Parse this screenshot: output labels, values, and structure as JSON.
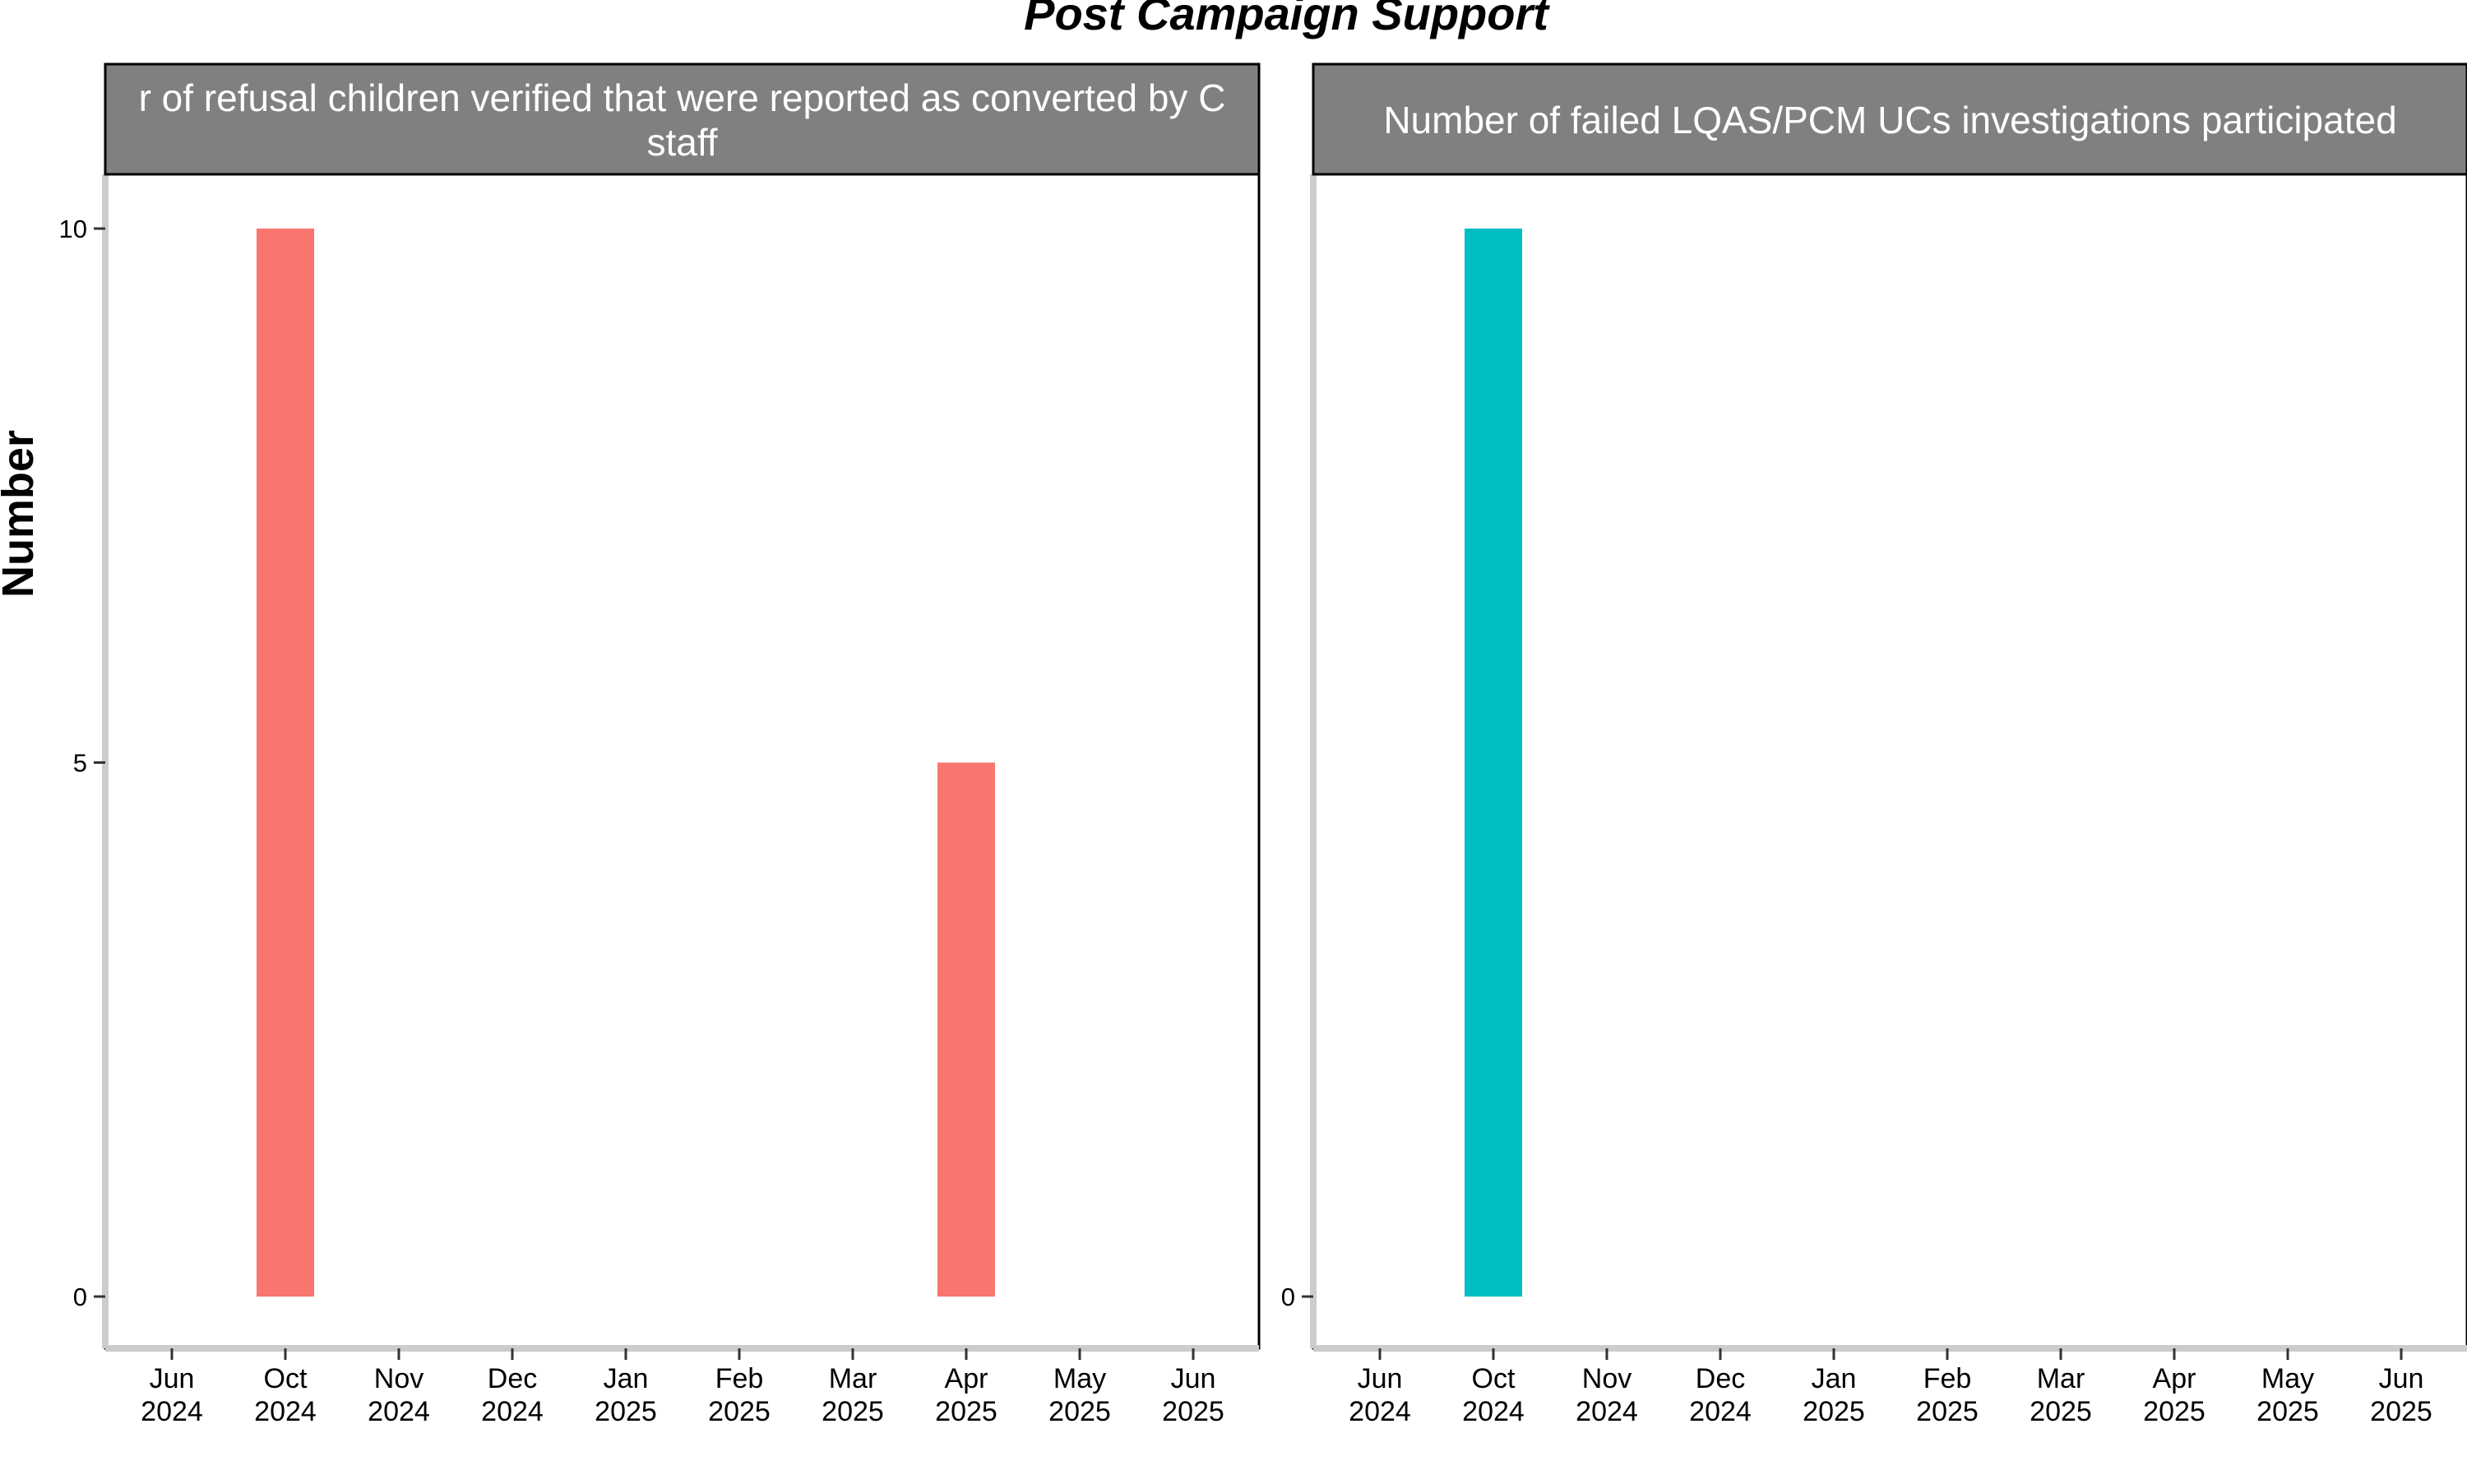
{
  "chart_data": {
    "type": "bar",
    "title": "Post Campaign Support",
    "ylabel": "Number",
    "xlabel": "",
    "grid": false,
    "legend": "none",
    "x_ticks": [
      {
        "date": "2024-06",
        "month": "Jun",
        "year": "2024"
      },
      {
        "date": "2024-10",
        "month": "Oct",
        "year": "2024"
      },
      {
        "date": "2024-11",
        "month": "Nov",
        "year": "2024"
      },
      {
        "date": "2024-12",
        "month": "Dec",
        "year": "2024"
      },
      {
        "date": "2025-01",
        "month": "Jan",
        "year": "2025"
      },
      {
        "date": "2025-02",
        "month": "Feb",
        "year": "2025"
      },
      {
        "date": "2025-03",
        "month": "Mar",
        "year": "2025"
      },
      {
        "date": "2025-04",
        "month": "Apr",
        "year": "2025"
      },
      {
        "date": "2025-05",
        "month": "May",
        "year": "2025"
      },
      {
        "date": "2025-06",
        "month": "Jun",
        "year": "2025"
      }
    ],
    "panels": [
      {
        "title_lines": [
          "r of refusal children verified that were reported as converted by C",
          "staff"
        ],
        "color": "#F8766D",
        "y_ticks": [
          "0",
          "5",
          "10"
        ],
        "ylim": [
          0,
          10.5
        ],
        "bars": [
          {
            "x": "2024-10",
            "value": 10
          },
          {
            "x": "2025-04",
            "value": 5
          }
        ]
      },
      {
        "title_lines": [
          "Number of failed LQAS/PCM UCs investigations participated"
        ],
        "color": "#00BFC4",
        "y_ticks": [
          "0"
        ],
        "ylim": [
          0,
          10.5
        ],
        "bars": [
          {
            "x": "2024-10",
            "value": 10
          }
        ]
      }
    ]
  }
}
